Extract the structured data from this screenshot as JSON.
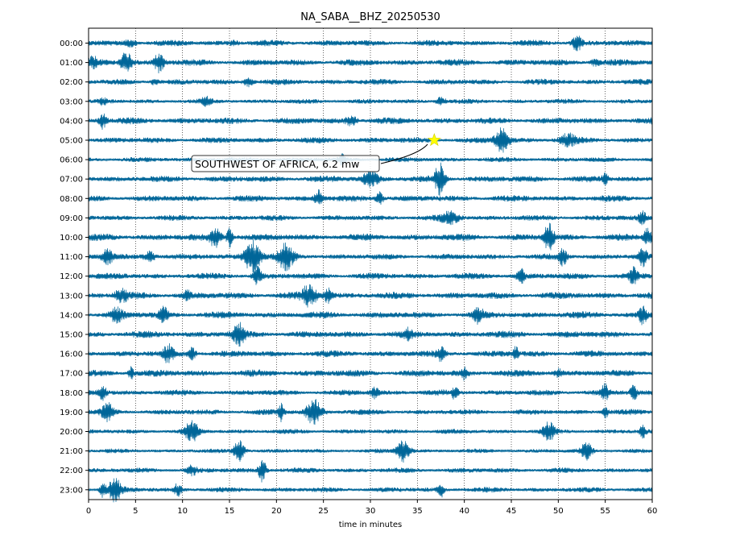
{
  "chart_data": {
    "type": "line",
    "title": "NA_SABA__BHZ_20250530",
    "xlabel": "time in minutes",
    "ylabel": "",
    "xlim": [
      0,
      60
    ],
    "x_ticks": [
      0,
      5,
      10,
      15,
      20,
      25,
      30,
      35,
      40,
      45,
      50,
      55,
      60
    ],
    "y_tick_labels": [
      "00:00",
      "01:00",
      "02:00",
      "03:00",
      "04:00",
      "05:00",
      "06:00",
      "07:00",
      "08:00",
      "09:00",
      "10:00",
      "11:00",
      "12:00",
      "13:00",
      "14:00",
      "15:00",
      "16:00",
      "17:00",
      "18:00",
      "19:00",
      "20:00",
      "21:00",
      "22:00",
      "23:00"
    ],
    "grid": "vertical-dotted",
    "trace_color": "#006699",
    "event": {
      "label": "SOUTHWEST OF AFRICA, 6.2 mw",
      "hour": "05:00",
      "minute": 36.8,
      "marker": "star",
      "marker_color": "#ffff00"
    }
  }
}
